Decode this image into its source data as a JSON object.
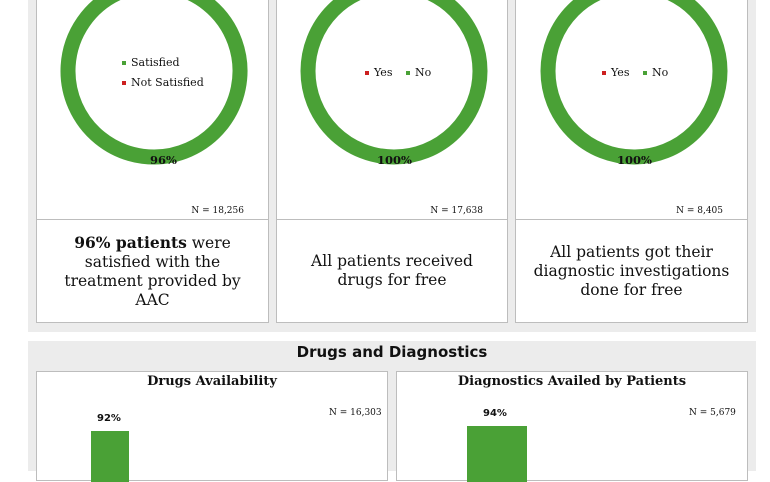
{
  "colors": {
    "green": "#4aa136",
    "red": "#cc1f1f"
  },
  "chart_data": [
    {
      "type": "pie",
      "title": "",
      "categories": [
        "Satisfied",
        "Not Satisfied"
      ],
      "values": [
        96,
        4
      ],
      "data_label": "96%",
      "n_label": "N = 18,256"
    },
    {
      "type": "pie",
      "title": "",
      "categories": [
        "Yes",
        "No"
      ],
      "values": [
        0,
        100
      ],
      "data_label": "100%",
      "n_label": "N = 17,638"
    },
    {
      "type": "pie",
      "title": "",
      "categories": [
        "Yes",
        "No"
      ],
      "values": [
        0,
        100
      ],
      "data_label": "100%",
      "n_label": "N =  8,405"
    },
    {
      "type": "bar",
      "title": "Drugs Availability",
      "categories": [
        ""
      ],
      "values": [
        92
      ],
      "data_label": "92%",
      "n_label": "N = 16,303",
      "ylim": [
        0,
        100
      ]
    },
    {
      "type": "bar",
      "title": "Diagnostics Availed by Patients",
      "categories": [
        ""
      ],
      "values": [
        94
      ],
      "data_label": "94%",
      "n_label": "N =  5,679",
      "ylim": [
        0,
        100
      ]
    }
  ],
  "summaries": {
    "card1_bold": "96% patients",
    "card1_rest": " were satisfied with the treatment provided  by AAC",
    "card2": "All patients received drugs for free",
    "card3": "All patients got their diagnostic investigations done for free"
  },
  "section_title": "Drugs and Diagnostics"
}
